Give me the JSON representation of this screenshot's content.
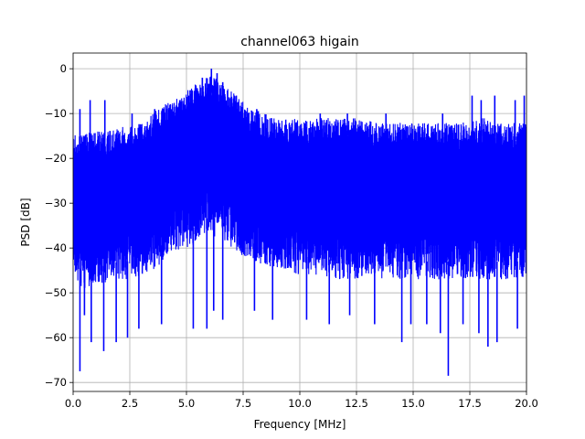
{
  "chart_data": {
    "type": "line",
    "title": "channel063 higain",
    "xlabel": "Frequency [MHz]",
    "ylabel": "PSD [dB]",
    "xlim": [
      0,
      20
    ],
    "ylim": [
      -72,
      3.5
    ],
    "xticks": [
      0,
      2.5,
      5,
      7.5,
      10,
      12.5,
      15,
      17.5,
      20
    ],
    "xtick_labels": [
      "0.0",
      "2.5",
      "5.0",
      "7.5",
      "10.0",
      "12.5",
      "15.0",
      "17.5",
      "20.0"
    ],
    "yticks": [
      0,
      -10,
      -20,
      -30,
      -40,
      -50,
      -60,
      -70
    ],
    "ytick_labels": [
      "0",
      "−10",
      "−20",
      "−30",
      "−40",
      "−50",
      "−60",
      "−70"
    ],
    "grid": true,
    "series": [
      {
        "color": "#0000ff",
        "envelope": {
          "x": [
            0,
            0.5,
            1,
            1.5,
            2,
            2.5,
            3,
            3.5,
            4,
            4.5,
            5,
            5.5,
            6,
            6.5,
            7,
            7.5,
            8,
            8.5,
            9,
            9.5,
            10,
            10.5,
            11,
            11.5,
            12,
            12.5,
            13,
            13.5,
            14,
            14.5,
            15,
            15.5,
            16,
            16.5,
            17,
            17.5,
            18,
            18.5,
            19,
            19.5,
            20
          ],
          "upper": [
            -15,
            -14,
            -14,
            -14,
            -13,
            -13,
            -12,
            -10,
            -8,
            -7,
            -5,
            -3,
            -1,
            -3,
            -5,
            -7,
            -9,
            -10,
            -11,
            -11,
            -11,
            -11,
            -11,
            -11,
            -11,
            -11,
            -11,
            -12,
            -12,
            -12,
            -12,
            -12,
            -12,
            -12,
            -12,
            -12,
            -11,
            -11,
            -12,
            -12,
            -12
          ],
          "lower": [
            -48,
            -49,
            -48,
            -48,
            -47,
            -47,
            -46,
            -45,
            -43,
            -41,
            -40,
            -39,
            -37,
            -38,
            -40,
            -42,
            -43,
            -44,
            -45,
            -45,
            -46,
            -46,
            -46,
            -47,
            -47,
            -47,
            -47,
            -47,
            -47,
            -47,
            -47,
            -47,
            -47,
            -47,
            -47,
            -47,
            -47,
            -47,
            -47,
            -47,
            -47
          ]
        },
        "peaks": [
          [
            0.3,
            -9
          ],
          [
            0.75,
            -7
          ],
          [
            1.4,
            -7
          ],
          [
            2.6,
            -10
          ],
          [
            3.6,
            -9
          ],
          [
            5.1,
            -6
          ],
          [
            5.7,
            -2
          ],
          [
            6.1,
            0
          ],
          [
            6.35,
            -1
          ],
          [
            6.6,
            -3
          ],
          [
            7.2,
            -6
          ],
          [
            8.1,
            -9
          ],
          [
            10.9,
            -10
          ],
          [
            12.1,
            -10
          ],
          [
            13.8,
            -10
          ],
          [
            16.3,
            -10
          ],
          [
            17.6,
            -6
          ],
          [
            18.0,
            -7
          ],
          [
            18.6,
            -6
          ],
          [
            19.5,
            -7
          ],
          [
            19.9,
            -6
          ]
        ],
        "troughs": [
          [
            0.3,
            -67.5
          ],
          [
            0.5,
            -55
          ],
          [
            0.8,
            -61
          ],
          [
            1.35,
            -63
          ],
          [
            1.9,
            -61
          ],
          [
            2.4,
            -60
          ],
          [
            2.9,
            -58
          ],
          [
            3.9,
            -57
          ],
          [
            5.3,
            -58
          ],
          [
            5.9,
            -58
          ],
          [
            6.2,
            -54
          ],
          [
            6.6,
            -56
          ],
          [
            8.0,
            -54
          ],
          [
            8.8,
            -56
          ],
          [
            10.3,
            -56
          ],
          [
            11.3,
            -57
          ],
          [
            12.2,
            -55
          ],
          [
            13.3,
            -57
          ],
          [
            14.5,
            -61
          ],
          [
            14.9,
            -57
          ],
          [
            15.6,
            -57
          ],
          [
            16.2,
            -59
          ],
          [
            16.55,
            -68.5
          ],
          [
            17.2,
            -57
          ],
          [
            17.9,
            -59
          ],
          [
            18.3,
            -62
          ],
          [
            18.7,
            -61
          ],
          [
            19.6,
            -58
          ]
        ]
      }
    ]
  }
}
